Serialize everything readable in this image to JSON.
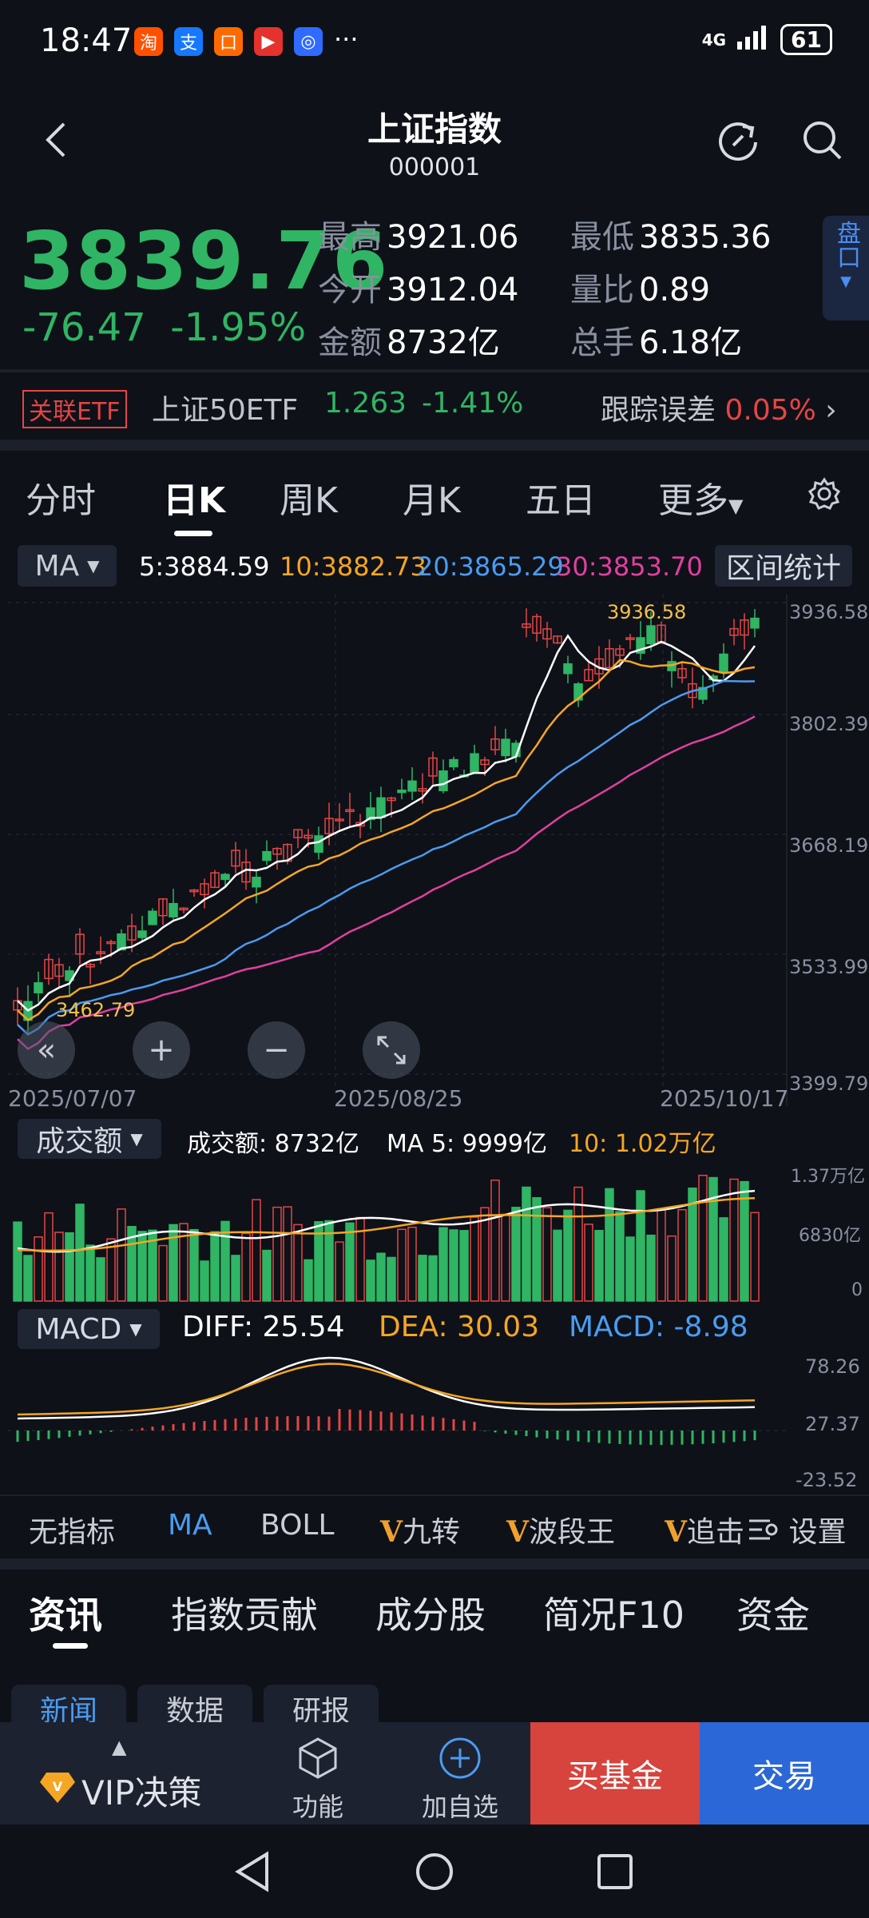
{
  "status": {
    "time": "18:47",
    "signal": "4G",
    "battery": "61",
    "apps": [
      {
        "glyph": "淘",
        "color": "#ff5000"
      },
      {
        "glyph": "支",
        "color": "#1677ff"
      },
      {
        "glyph": "口",
        "color": "#ff6a00"
      },
      {
        "glyph": "▶",
        "color": "#e5322d"
      },
      {
        "glyph": "◎",
        "color": "#2f6bff"
      }
    ],
    "more": "···"
  },
  "header": {
    "title": "上证指数",
    "code": "000001"
  },
  "quote": {
    "price": "3839.76",
    "change": "-76.47",
    "change_pct": "-1.95%",
    "high_label": "最高",
    "high": "3921.06",
    "low_label": "最低",
    "low": "3835.36",
    "open_label": "今开",
    "open": "3912.04",
    "vol_ratio_label": "量比",
    "vol_ratio": "0.89",
    "amount_label": "金额",
    "amount": "8732亿",
    "turnover_label": "总手",
    "turnover": "6.18亿",
    "pankou": "盘口"
  },
  "etf": {
    "badge": "关联ETF",
    "name": "上证50ETF",
    "price": "1.263",
    "pct": "-1.41%",
    "error_label": "跟踪误差",
    "error": "0.05%"
  },
  "tabs": [
    "分时",
    "日K",
    "周K",
    "月K",
    "五日",
    "更多"
  ],
  "ma": {
    "button": "MA",
    "ma5": "5:3884.59",
    "ma10": "10:3882.73",
    "ma20": "20:3865.29",
    "ma30": "30:3853.70",
    "range_button": "区间统计",
    "colors": {
      "ma5": "#ffffff",
      "ma10": "#f5a623",
      "ma20": "#4a9cf0",
      "ma30": "#e040a0"
    }
  },
  "kline": {
    "y_ticks": [
      "3936.58",
      "3802.39",
      "3668.19",
      "3533.99",
      "3399.79"
    ],
    "x_ticks": [
      "2025/07/07",
      "2025/08/25",
      "2025/10/17"
    ],
    "max_label": "3936.58",
    "min_label": "3462.79"
  },
  "volume": {
    "button": "成交额",
    "label": "成交额: 8732亿",
    "ma5": "MA 5: 9999亿",
    "ma10": "10: 1.02万亿",
    "y_ticks": [
      "1.37万亿",
      "6830亿",
      "0"
    ]
  },
  "macd": {
    "button": "MACD",
    "diff": "DIFF: 25.54",
    "dea": "DEA: 30.03",
    "macd": "MACD: -8.98",
    "y_ticks": [
      "78.26",
      "27.37",
      "-23.52"
    ]
  },
  "indicator_tabs": {
    "none": "无指标",
    "ma": "MA",
    "boll": "BOLL",
    "v1": "九转",
    "v2": "波段王",
    "v3": "追击",
    "settings": "设置",
    "v_mark": "V"
  },
  "bottom_tabs": [
    "资讯",
    "指数贡献",
    "成分股",
    "简况F10",
    "资金"
  ],
  "sub_tabs": [
    "新闻",
    "数据",
    "研报"
  ],
  "action_bar": {
    "vip": "VIP决策",
    "func": "功能",
    "add": "加自选",
    "buy": "买基金",
    "trade": "交易"
  }
}
